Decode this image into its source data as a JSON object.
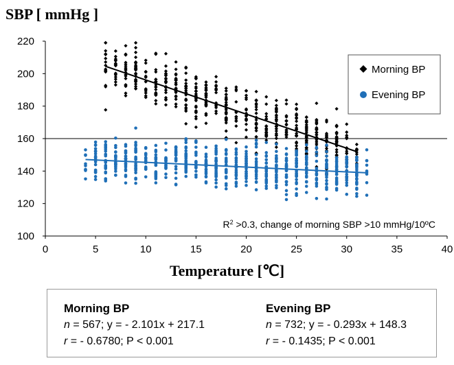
{
  "chart_data": {
    "type": "scatter",
    "ylabel": "SBP [ mmHg ]",
    "xlabel": "Temperature [℃]",
    "xlim": [
      0,
      40
    ],
    "ylim": [
      100,
      220
    ],
    "xticks": [
      0,
      5,
      10,
      15,
      20,
      25,
      30,
      35,
      40
    ],
    "yticks": [
      100,
      120,
      140,
      160,
      180,
      200,
      220
    ],
    "reference_line_y": 160,
    "grid": false,
    "legend_position": "top-right",
    "annotation": {
      "sup": "2",
      "prefix": "R",
      "text": " >0.3, change of morning SBP >10 mmHg/10ºC"
    },
    "series": [
      {
        "name": "Morning BP",
        "marker": "diamond",
        "color": "#000000",
        "n": 567,
        "x_range": [
          6,
          31
        ],
        "spread": 14,
        "trend": {
          "slope": -2.101,
          "intercept": 217.1,
          "x_start": 6,
          "x_end": 31
        }
      },
      {
        "name": "Evening BP",
        "marker": "circle",
        "color": "#1f6fb7",
        "n": 732,
        "x_range": [
          4,
          32
        ],
        "spread": 12,
        "trend": {
          "slope": -0.293,
          "intercept": 148.3,
          "x_start": 4,
          "x_end": 32
        }
      }
    ]
  },
  "stats": {
    "morning": {
      "title": "Morning BP",
      "n_label": "n",
      "line1_rest": " = 567; y = - 2.101x + 217.1",
      "r_label": "r",
      "line2_rest": " = - 0.6780; P < 0.001"
    },
    "evening": {
      "title": "Evening BP",
      "n_label": "n",
      "line1_rest": " = 732; y = - 0.293x + 148.3",
      "r_label": "r",
      "line2_rest": " = - 0.1435; P < 0.001"
    }
  }
}
